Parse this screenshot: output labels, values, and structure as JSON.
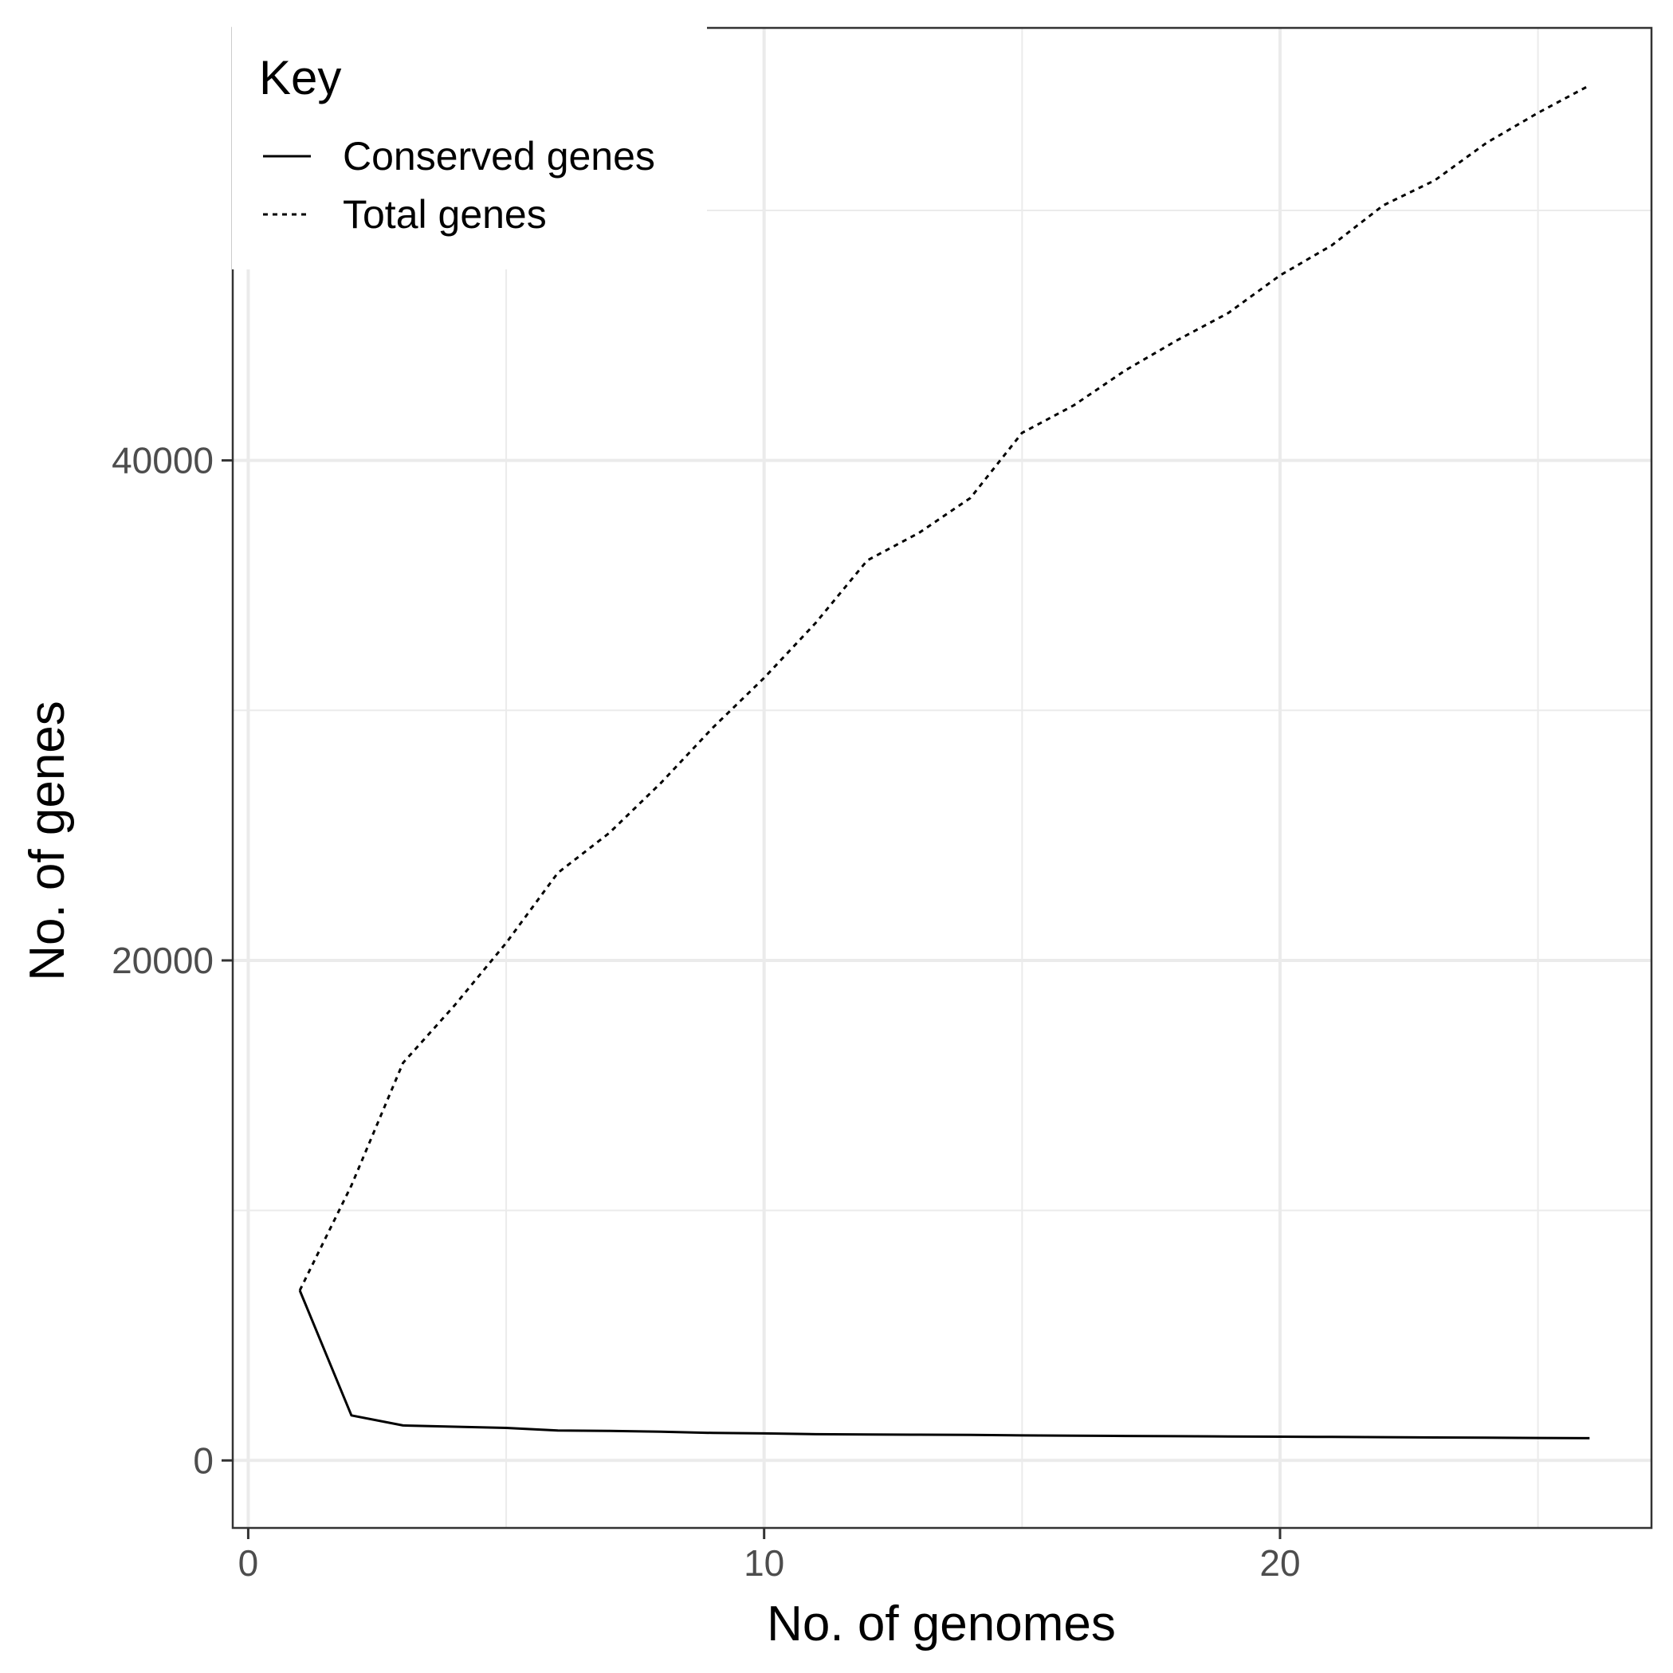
{
  "chart_data": {
    "type": "line",
    "xlabel": "No. of genomes",
    "ylabel": "No. of genes",
    "xlim": [
      -0.3,
      27.2
    ],
    "ylim": [
      -2700,
      57300
    ],
    "x_ticks": [
      0,
      10,
      20
    ],
    "x_minor_ticks": [
      5,
      15,
      25
    ],
    "y_ticks": [
      0,
      20000,
      40000
    ],
    "y_minor_ticks": [
      10000,
      30000,
      50000
    ],
    "grid": true,
    "legend": {
      "title": "Key",
      "position": "top-left"
    },
    "series": [
      {
        "name": "Conserved genes",
        "line_style": "solid",
        "color": "#000000",
        "x": [
          1,
          2,
          3,
          4,
          5,
          6,
          7,
          8,
          9,
          10,
          11,
          12,
          13,
          14,
          15,
          16,
          17,
          18,
          19,
          20,
          21,
          22,
          23,
          24,
          25,
          26
        ],
        "y": [
          6800,
          1800,
          1400,
          1350,
          1300,
          1200,
          1180,
          1150,
          1100,
          1080,
          1050,
          1040,
          1030,
          1020,
          1000,
          990,
          980,
          970,
          960,
          950,
          940,
          930,
          920,
          910,
          900,
          890
        ]
      },
      {
        "name": "Total genes",
        "line_style": "dotted",
        "color": "#000000",
        "x": [
          1,
          2,
          3,
          4,
          5,
          6,
          7,
          8,
          9,
          10,
          11,
          12,
          13,
          14,
          15,
          16,
          17,
          18,
          19,
          20,
          21,
          22,
          23,
          24,
          25,
          26
        ],
        "y": [
          6800,
          11000,
          15900,
          18200,
          20700,
          23500,
          25100,
          27100,
          29300,
          31300,
          33500,
          36000,
          37100,
          38500,
          41100,
          42200,
          43600,
          44800,
          45900,
          47400,
          48600,
          50200,
          51200,
          52700,
          53900,
          55000
        ]
      }
    ]
  }
}
